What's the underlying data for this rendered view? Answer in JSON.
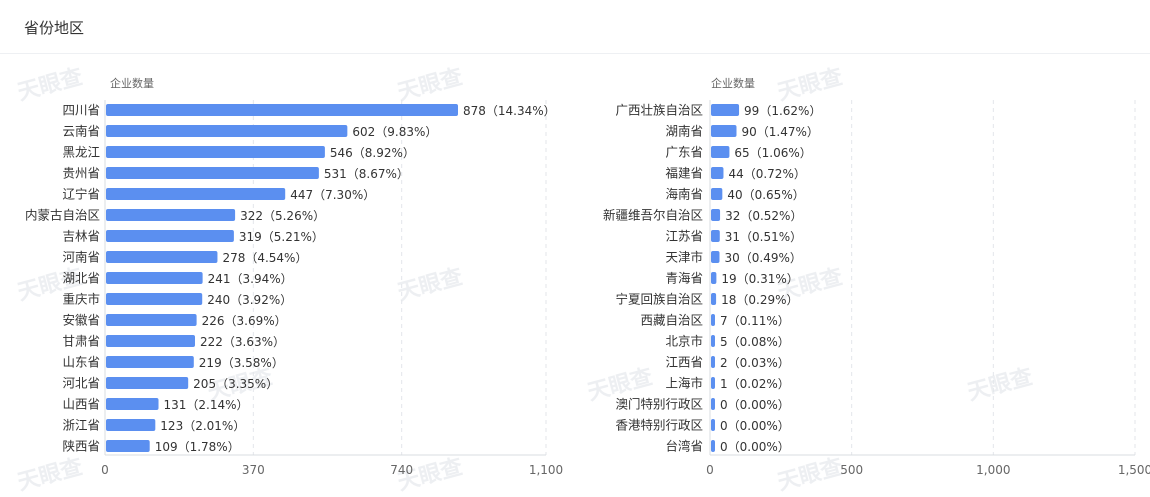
{
  "header": {
    "title": "省份地区"
  },
  "chart_data": [
    {
      "type": "bar",
      "orientation": "horizontal",
      "ylabel": "企业数量",
      "xlim": [
        0,
        1100
      ],
      "xticks": [
        "0",
        "370",
        "740",
        "1,100"
      ],
      "tick_values": [
        0,
        370,
        740,
        1100
      ],
      "grid": true,
      "categories": [
        "四川省",
        "云南省",
        "黑龙江",
        "贵州省",
        "辽宁省",
        "内蒙古自治区",
        "吉林省",
        "河南省",
        "湖北省",
        "重庆市",
        "安徽省",
        "甘肃省",
        "山东省",
        "河北省",
        "山西省",
        "浙江省",
        "陕西省"
      ],
      "values": [
        878,
        602,
        546,
        531,
        447,
        322,
        319,
        278,
        241,
        240,
        226,
        222,
        219,
        205,
        131,
        123,
        109
      ],
      "labels": [
        "878（14.34%）",
        "602（9.83%）",
        "546（8.92%）",
        "531（8.67%）",
        "447（7.30%）",
        "322（5.26%）",
        "319（5.21%）",
        "278（4.54%）",
        "241（3.94%）",
        "240（3.92%）",
        "226（3.69%）",
        "222（3.63%）",
        "219（3.58%）",
        "205（3.35%）",
        "131（2.14%）",
        "123（2.01%）",
        "109（1.78%）"
      ],
      "color": "#5b8ff0"
    },
    {
      "type": "bar",
      "orientation": "horizontal",
      "ylabel": "企业数量",
      "xlim": [
        0,
        1500
      ],
      "xticks": [
        "0",
        "500",
        "1,000",
        "1,500"
      ],
      "tick_values": [
        0,
        500,
        1000,
        1500
      ],
      "grid": true,
      "categories": [
        "广西壮族自治区",
        "湖南省",
        "广东省",
        "福建省",
        "海南省",
        "新疆维吾尔自治区",
        "江苏省",
        "天津市",
        "青海省",
        "宁夏回族自治区",
        "西藏自治区",
        "北京市",
        "江西省",
        "上海市",
        "澳门特别行政区",
        "香港特别行政区",
        "台湾省"
      ],
      "values": [
        99,
        90,
        65,
        44,
        40,
        32,
        31,
        30,
        19,
        18,
        7,
        5,
        2,
        1,
        0,
        0,
        0
      ],
      "labels": [
        "99（1.62%）",
        "90（1.47%）",
        "65（1.06%）",
        "44（0.72%）",
        "40（0.65%）",
        "32（0.52%）",
        "31（0.51%）",
        "30（0.49%）",
        "19（0.31%）",
        "18（0.29%）",
        "7（0.11%）",
        "5（0.08%）",
        "2（0.03%）",
        "1（0.02%）",
        "0（0.00%）",
        "0（0.00%）",
        "0（0.00%）"
      ],
      "color": "#5b8ff0"
    }
  ],
  "watermark": {
    "text": "天眼查"
  }
}
